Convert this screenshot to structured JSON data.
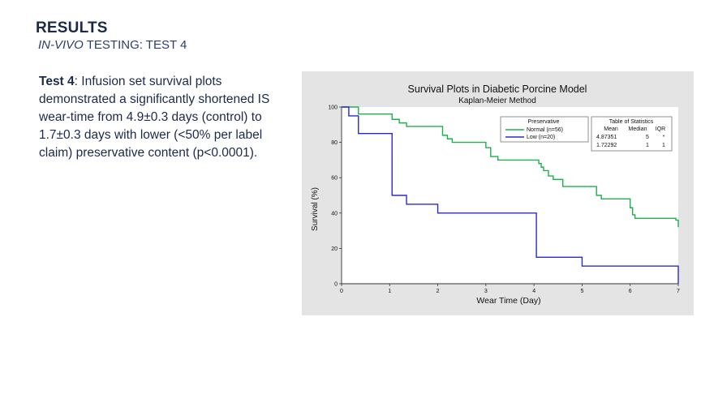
{
  "header": {
    "title": "RESULTS",
    "subtitle_italic": "IN-VIVO",
    "subtitle_rest": " TESTING: TEST 4"
  },
  "body": {
    "lead": "Test 4",
    "text": ": Infusion set survival plots demonstrated a significantly shortened IS wear-time from 4.9±0.3 days (control) to 1.7±0.3 days with lower (<50%  per label claim) preservative content (p<0.0001)."
  },
  "colors": {
    "panel_bg": "#e4e4e4",
    "normal": "#1fb04c",
    "low": "#2a2ad0"
  },
  "chart_data": {
    "type": "line",
    "step": true,
    "title": "Survival Plots in Diabetic Porcine Model",
    "subtitle": "Kaplan-Meier Method",
    "xlabel": "Wear Time (Day)",
    "ylabel": "Survival (%)",
    "xlim": [
      0,
      7
    ],
    "ylim": [
      0,
      100
    ],
    "xticks": [
      0,
      1,
      2,
      3,
      4,
      5,
      6,
      7
    ],
    "yticks": [
      0,
      20,
      40,
      60,
      80,
      100
    ],
    "grid": false,
    "legend": {
      "title": "Preservative",
      "placement": "top-right",
      "entries": [
        "Normal (n=56)",
        "Low (n=20)"
      ]
    },
    "stats_table": {
      "title": "Table of Statistics",
      "headers": [
        "Mean",
        "Median",
        "IQR"
      ],
      "rows": [
        [
          "4.87351",
          "5",
          "*"
        ],
        [
          "1.72292",
          "1",
          "1"
        ]
      ]
    },
    "series": [
      {
        "name": "Normal (n=56)",
        "x": [
          0,
          0.35,
          0.95,
          1.05,
          1.2,
          1.35,
          2.0,
          2.1,
          2.2,
          2.3,
          3.0,
          3.1,
          3.25,
          4.0,
          4.1,
          4.15,
          4.2,
          4.3,
          4.4,
          4.6,
          4.95,
          5.3,
          5.4,
          6.0,
          6.05,
          6.1,
          6.95,
          7.0
        ],
        "y": [
          100,
          96,
          96,
          93,
          91,
          89,
          89,
          84,
          82,
          80,
          77,
          72,
          70,
          70,
          68,
          66,
          64,
          61,
          59,
          55,
          55,
          50,
          48,
          43,
          39,
          37,
          36,
          32
        ]
      },
      {
        "name": "Low (n=20)",
        "x": [
          0,
          0.15,
          0.35,
          1.0,
          1.05,
          1.35,
          2.0,
          4.05,
          5.0,
          7.0
        ],
        "y": [
          100,
          95,
          85,
          85,
          50,
          45,
          40,
          15,
          10,
          0
        ]
      }
    ]
  }
}
